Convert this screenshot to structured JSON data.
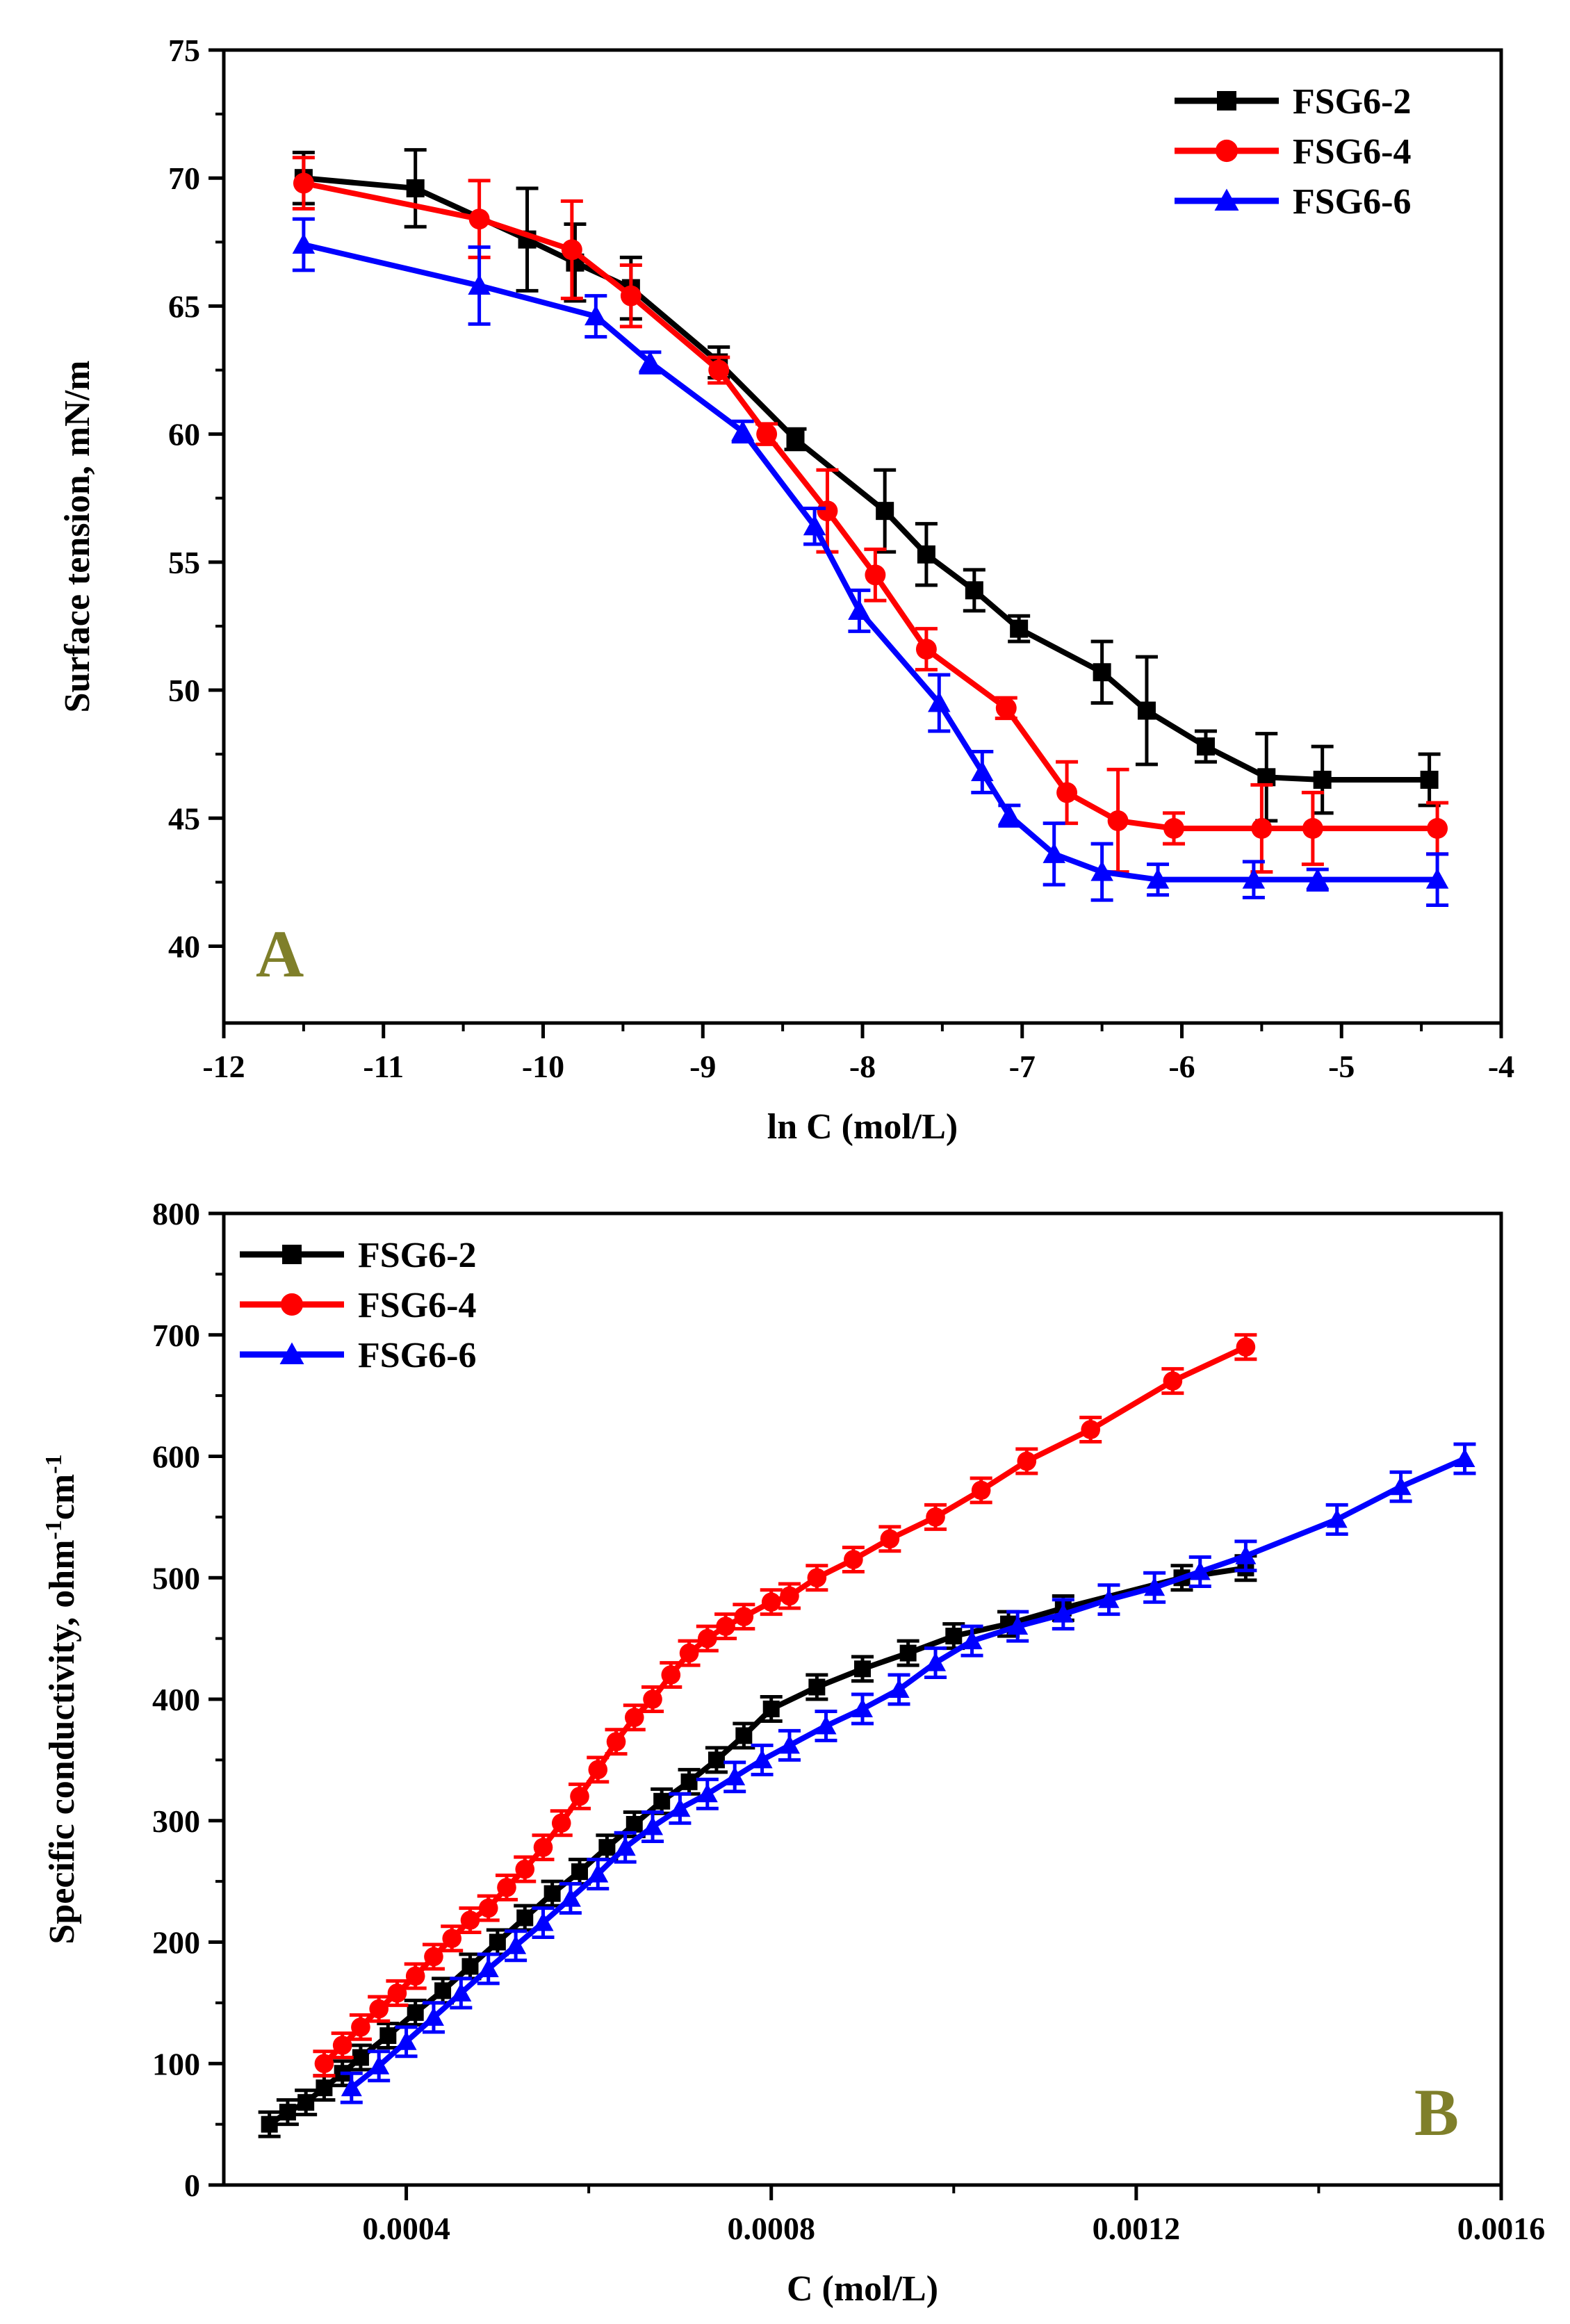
{
  "colors": {
    "FSG6-2": "#000000",
    "FSG6-4": "#ff0000",
    "FSG6-6": "#0000ff",
    "panel_letter": "#7f7f2a"
  },
  "chart_data": [
    {
      "type": "line",
      "panel_label": "A",
      "title": "",
      "xlabel": "ln C (mol/L)",
      "ylabel": "Surface tension, mN/m",
      "xlim": [
        -12,
        -4
      ],
      "ylim": [
        37,
        75
      ],
      "x_ticks": [
        -12,
        -11,
        -10,
        -9,
        -8,
        -7,
        -6,
        -5,
        -4
      ],
      "y_ticks": [
        40,
        45,
        50,
        55,
        60,
        65,
        70,
        75
      ],
      "legend_position": "top-right",
      "series": [
        {
          "name": "FSG6-2",
          "marker": "square",
          "x": [
            -11.5,
            -10.8,
            -10.1,
            -9.8,
            -9.45,
            -8.9,
            -8.42,
            -7.86,
            -7.6,
            -7.3,
            -7.02,
            -6.5,
            -6.22,
            -5.85,
            -5.47,
            -5.12,
            -4.45
          ],
          "y": [
            70.0,
            69.6,
            67.6,
            66.7,
            65.7,
            62.8,
            59.8,
            57.0,
            55.3,
            53.9,
            52.4,
            50.7,
            49.2,
            47.8,
            46.6,
            46.5,
            46.5
          ],
          "err": [
            1.0,
            1.5,
            2.0,
            1.5,
            1.2,
            0.6,
            0.4,
            1.6,
            1.2,
            0.8,
            0.5,
            1.2,
            2.1,
            0.6,
            1.7,
            1.3,
            1.0
          ]
        },
        {
          "name": "FSG6-4",
          "marker": "circle",
          "x": [
            -11.5,
            -10.4,
            -9.82,
            -9.45,
            -8.9,
            -8.6,
            -8.22,
            -7.92,
            -7.6,
            -7.1,
            -6.72,
            -6.4,
            -6.05,
            -5.5,
            -5.18,
            -4.4
          ],
          "y": [
            69.8,
            68.4,
            67.2,
            65.4,
            62.5,
            60.0,
            57.0,
            54.5,
            51.6,
            49.3,
            46.0,
            44.9,
            44.6,
            44.6,
            44.6,
            44.6
          ],
          "err": [
            1.0,
            1.5,
            1.9,
            1.2,
            0.5,
            0.4,
            1.6,
            1.0,
            0.8,
            0.4,
            1.2,
            2.0,
            0.6,
            1.7,
            1.4,
            1.0
          ]
        },
        {
          "name": "FSG6-6",
          "marker": "triangle",
          "x": [
            -11.5,
            -10.4,
            -9.67,
            -9.33,
            -8.75,
            -8.3,
            -8.02,
            -7.52,
            -7.25,
            -7.08,
            -6.8,
            -6.5,
            -6.15,
            -5.55,
            -5.15,
            -4.4
          ],
          "y": [
            67.4,
            65.8,
            64.6,
            62.8,
            60.1,
            56.4,
            53.1,
            49.5,
            46.8,
            45.1,
            43.6,
            42.9,
            42.6,
            42.6,
            42.6,
            42.6
          ],
          "err": [
            1.0,
            1.5,
            0.8,
            0.4,
            0.4,
            0.7,
            0.8,
            1.1,
            0.8,
            0.4,
            1.2,
            1.1,
            0.6,
            0.7,
            0.4,
            1.0
          ]
        }
      ]
    },
    {
      "type": "line",
      "panel_label": "B",
      "title": "",
      "xlabel": "C (mol/L)",
      "ylabel": "Specific conductivity, ohm",
      "ylabel_exp1": "-1",
      "ylabel_unit": "cm",
      "ylabel_exp2": "-1",
      "xlim": [
        0.0002,
        0.0016
      ],
      "ylim": [
        0,
        800
      ],
      "x_ticks": [
        0.0004,
        0.0008,
        0.0012,
        0.0016
      ],
      "x_tick_labels": [
        "0.0004",
        "0.0008",
        "0.0012",
        "0.0016"
      ],
      "y_ticks": [
        0,
        100,
        200,
        300,
        400,
        500,
        600,
        700,
        800
      ],
      "legend_position": "top-left",
      "series": [
        {
          "name": "FSG6-2",
          "marker": "square",
          "x": [
            0.00025,
            0.00027,
            0.00029,
            0.00031,
            0.00033,
            0.00035,
            0.00038,
            0.00041,
            0.00044,
            0.00047,
            0.0005,
            0.00053,
            0.00056,
            0.00059,
            0.00062,
            0.00065,
            0.00068,
            0.00071,
            0.00074,
            0.00077,
            0.0008,
            0.00085,
            0.0009,
            0.00095,
            0.001,
            0.00106,
            0.00112,
            0.00125,
            0.00132
          ],
          "y": [
            50,
            60,
            68,
            80,
            92,
            105,
            123,
            142,
            160,
            180,
            200,
            220,
            240,
            258,
            278,
            297,
            316,
            332,
            350,
            370,
            392,
            410,
            425,
            438,
            452,
            462,
            475,
            500,
            508
          ],
          "err": [
            10
          ]
        },
        {
          "name": "FSG6-4",
          "marker": "circle",
          "x": [
            0.00031,
            0.00033,
            0.00035,
            0.00037,
            0.00039,
            0.00041,
            0.00043,
            0.00045,
            0.00047,
            0.00049,
            0.00051,
            0.00053,
            0.00055,
            0.00057,
            0.00059,
            0.00061,
            0.00063,
            0.00065,
            0.00067,
            0.00069,
            0.00071,
            0.00073,
            0.00075,
            0.00077,
            0.0008,
            0.00082,
            0.00085,
            0.00089,
            0.00093,
            0.00098,
            0.00103,
            0.00108,
            0.00115,
            0.00124,
            0.00132
          ],
          "y": [
            100,
            115,
            130,
            145,
            158,
            172,
            188,
            203,
            218,
            228,
            245,
            260,
            278,
            298,
            320,
            342,
            365,
            385,
            400,
            420,
            438,
            450,
            460,
            468,
            480,
            485,
            500,
            515,
            532,
            550,
            572,
            596,
            622,
            662,
            690
          ],
          "err": [
            10
          ]
        },
        {
          "name": "FSG6-6",
          "marker": "triangle",
          "x": [
            0.00034,
            0.00037,
            0.0004,
            0.00043,
            0.00046,
            0.00049,
            0.00052,
            0.00055,
            0.00058,
            0.00061,
            0.00064,
            0.00067,
            0.0007,
            0.00073,
            0.00076,
            0.00079,
            0.00082,
            0.00086,
            0.0009,
            0.00094,
            0.00098,
            0.00102,
            0.00107,
            0.00112,
            0.00117,
            0.00122,
            0.00127,
            0.00132,
            0.00142,
            0.00149,
            0.00156
          ],
          "y": [
            80,
            98,
            118,
            138,
            158,
            178,
            197,
            216,
            236,
            256,
            278,
            295,
            310,
            322,
            336,
            350,
            362,
            378,
            392,
            408,
            430,
            448,
            460,
            470,
            482,
            492,
            505,
            518,
            548,
            575,
            598
          ],
          "err": [
            12
          ]
        }
      ]
    }
  ]
}
